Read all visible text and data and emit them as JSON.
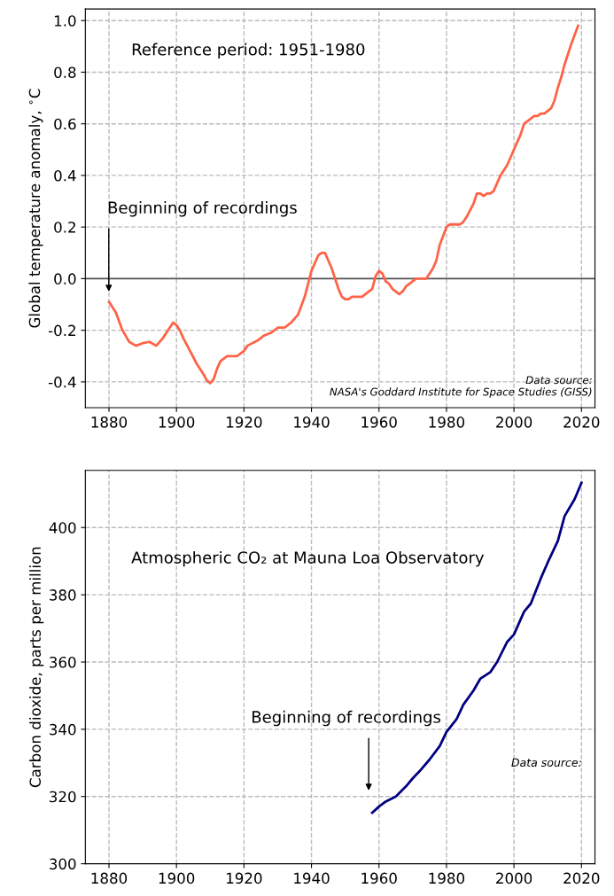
{
  "chart_data": [
    {
      "type": "line",
      "ylabel": "Global temperature anomaly, $^{∘}$C",
      "xlim": [
        1873,
        2024
      ],
      "ylim": [
        -0.5,
        1.045
      ],
      "xticks": [
        1880,
        1900,
        1920,
        1940,
        1960,
        1980,
        2000,
        2020
      ],
      "yticks": [
        -0.4,
        -0.2,
        {
          "value": 0,
          "label": "0.0"
        },
        0.2,
        0.4,
        0.6,
        0.8,
        {
          "value": 1,
          "label": "1.0"
        }
      ],
      "grid": true,
      "line_style": "solid",
      "marker": "none",
      "ref_lines": [
        {
          "axis": "y",
          "value": 0,
          "color": "#555555"
        }
      ],
      "annotations": [
        "Reference period: 1951-1980",
        "Beginning of recordings",
        "Data source:\nNASA's Goddard Institute for Space Studies (GISS)"
      ],
      "series": [
        {
          "color": "#ff6347",
          "x": [
            1880,
            1882,
            1884,
            1886,
            1888,
            1890,
            1892,
            1894,
            1896,
            1898,
            1899,
            1900,
            1901,
            1902,
            1904,
            1906,
            1908,
            1909,
            1910,
            1911,
            1912,
            1913,
            1915,
            1918,
            1920,
            1921,
            1924,
            1926,
            1928,
            1930,
            1932,
            1934,
            1936,
            1938,
            1940,
            1942,
            1943,
            1944,
            1946,
            1948,
            1949,
            1950,
            1951,
            1952,
            1955,
            1957,
            1958,
            1959,
            1960,
            1961,
            1962,
            1963,
            1964,
            1966,
            1967,
            1968,
            1970,
            1971,
            1974,
            1976,
            1977,
            1978,
            1980,
            1981,
            1984,
            1985,
            1986,
            1988,
            1989,
            1990,
            1991,
            1992,
            1993,
            1994,
            1996,
            1998,
            2000,
            2001,
            2002,
            2003,
            2005,
            2006,
            2007,
            2008,
            2009,
            2011,
            2012,
            2013,
            2014,
            2015,
            2017,
            2019
          ],
          "values": [
            -0.09,
            -0.13,
            -0.2,
            -0.245,
            -0.26,
            -0.25,
            -0.245,
            -0.26,
            -0.23,
            -0.19,
            -0.17,
            -0.18,
            -0.2,
            -0.23,
            -0.28,
            -0.33,
            -0.37,
            -0.395,
            -0.405,
            -0.39,
            -0.35,
            -0.32,
            -0.3,
            -0.3,
            -0.28,
            -0.26,
            -0.24,
            -0.22,
            -0.21,
            -0.19,
            -0.19,
            -0.17,
            -0.14,
            -0.07,
            0.03,
            0.09,
            0.1,
            0.1,
            0.04,
            -0.04,
            -0.07,
            -0.08,
            -0.08,
            -0.07,
            -0.07,
            -0.05,
            -0.04,
            0.01,
            0.03,
            0.02,
            -0.01,
            -0.02,
            -0.04,
            -0.06,
            -0.05,
            -0.03,
            -0.01,
            0.0,
            0.0,
            0.04,
            0.07,
            0.13,
            0.2,
            0.21,
            0.21,
            0.22,
            0.24,
            0.29,
            0.33,
            0.33,
            0.32,
            0.33,
            0.33,
            0.34,
            0.4,
            0.44,
            0.5,
            0.53,
            0.56,
            0.6,
            0.62,
            0.63,
            0.63,
            0.64,
            0.64,
            0.66,
            0.69,
            0.74,
            0.78,
            0.83,
            0.91,
            0.98
          ]
        }
      ]
    },
    {
      "type": "line",
      "ylabel": "Carbon dioxide, parts per million",
      "xlim": [
        1873,
        2024
      ],
      "ylim": [
        300,
        417
      ],
      "xticks": [
        1880,
        1900,
        1920,
        1940,
        1960,
        1980,
        2000,
        2020
      ],
      "yticks": [
        300,
        320,
        340,
        360,
        380,
        400
      ],
      "grid": true,
      "line_style": "solid",
      "marker": "none",
      "annotations": [
        "Atmospheric CO₂ at Mauna Loa Observatory",
        "Beginning of recordings",
        "Data source:"
      ],
      "series": [
        {
          "color": "#000080",
          "x": [
            1958,
            1960,
            1962,
            1965,
            1968,
            1970,
            1972,
            1975,
            1978,
            1980,
            1983,
            1985,
            1988,
            1990,
            1993,
            1995,
            1998,
            2000,
            2003,
            2005,
            2008,
            2010,
            2013,
            2015,
            2018,
            2020
          ],
          "values": [
            315.2,
            317,
            318.5,
            320,
            323,
            325.4,
            327.5,
            331,
            335,
            339.2,
            343,
            347.3,
            351.5,
            355,
            357,
            360,
            366,
            368.2,
            375,
            377.4,
            385,
            389.6,
            396,
            403.4,
            408.5,
            413.3
          ]
        }
      ]
    }
  ]
}
